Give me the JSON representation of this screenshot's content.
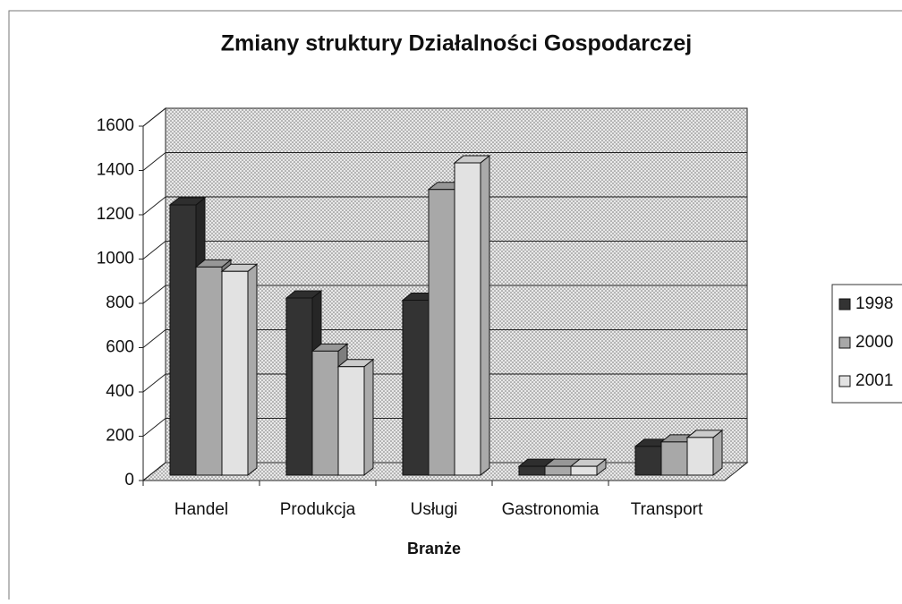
{
  "chart_data": {
    "type": "bar3d",
    "title": "Zmiany struktury Działalności Gospodarczej",
    "x_label": "Branże",
    "categories": [
      "Handel",
      "Produkcja",
      "Usługi",
      "Gastronomia",
      "Transport"
    ],
    "series": [
      {
        "name": "1998",
        "color": "#333333",
        "values": [
          1220,
          800,
          790,
          40,
          130
        ]
      },
      {
        "name": "2000",
        "color": "#a8a8a8",
        "values": [
          940,
          560,
          1290,
          40,
          150
        ]
      },
      {
        "name": "2001",
        "color": "#e2e2e2",
        "values": [
          920,
          490,
          1410,
          40,
          170
        ]
      }
    ],
    "ylim": [
      0,
      1600
    ],
    "yticks": [
      0,
      200,
      400,
      600,
      800,
      1000,
      1200,
      1400,
      1600
    ],
    "grid": true,
    "legend": "right"
  }
}
